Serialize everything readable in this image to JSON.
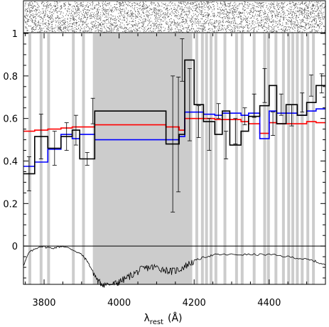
{
  "chart_data": {
    "type": "line",
    "xlabel": "λ",
    "xlabel_sub": "rest",
    "xlabel_unit": "(Å)",
    "xlim": [
      3745,
      4550
    ],
    "ylim": [
      -0.18,
      1.0
    ],
    "x_ticks": [
      3800,
      4000,
      4200,
      4400
    ],
    "x_tick_labels": [
      "3800",
      "4000",
      "4200",
      "4400"
    ],
    "y_ticks": [
      0,
      0.2,
      0.4,
      0.6,
      0.8,
      1
    ],
    "y_tick_labels": [
      "0",
      "0.2",
      "0.4",
      "0.6",
      "0.8",
      "1"
    ],
    "grid": false,
    "masked_band": [
      3930,
      4195
    ],
    "masked_lines": [
      3762,
      3792,
      3812,
      3878,
      3905,
      4145,
      4178,
      4207,
      4222,
      4233,
      4245,
      4258,
      4282,
      4313,
      4328,
      4360,
      4388,
      4398,
      4418,
      4438,
      4452,
      4463,
      4475,
      4488,
      4503,
      4518
    ],
    "colors": {
      "observed": "#000000",
      "model_blue": "#0000ff",
      "model_red": "#ff0000",
      "mask": "#cccccc",
      "zero_line": "#000000"
    },
    "series": [
      {
        "key": "observed",
        "style": "step",
        "x": [
          3745,
          3775,
          3810,
          3845,
          3875,
          3895,
          3935,
          4125,
          4160,
          4175,
          4200,
          4225,
          4255,
          4275,
          4295,
          4325,
          4345,
          4375,
          4400,
          4420,
          4445,
          4475,
          4500,
          4525,
          4550
        ],
        "y": [
          0.34,
          0.515,
          0.46,
          0.515,
          0.545,
          0.41,
          0.635,
          0.48,
          0.525,
          0.875,
          0.665,
          0.585,
          0.525,
          0.635,
          0.475,
          0.54,
          0.61,
          0.66,
          0.755,
          0.575,
          0.665,
          0.615,
          0.675,
          0.755,
          0.765
        ]
      },
      {
        "key": "model_blue",
        "style": "step",
        "x": [
          3745,
          3775,
          3810,
          3845,
          3875,
          3895,
          3935,
          4125,
          4160,
          4175,
          4200,
          4225,
          4255,
          4275,
          4295,
          4325,
          4345,
          4375,
          4400,
          4420,
          4445,
          4475,
          4500,
          4525,
          4550
        ],
        "y": [
          0.375,
          0.395,
          0.455,
          0.525,
          0.505,
          0.525,
          0.5,
          0.5,
          0.515,
          0.63,
          0.63,
          0.62,
          0.615,
          0.625,
          0.625,
          0.615,
          0.625,
          0.505,
          0.635,
          0.625,
          0.625,
          0.615,
          0.635,
          0.645,
          0.65
        ]
      },
      {
        "key": "model_red",
        "style": "step",
        "x": [
          3745,
          3775,
          3810,
          3845,
          3875,
          3895,
          3935,
          4125,
          4160,
          4175,
          4200,
          4225,
          4255,
          4275,
          4295,
          4325,
          4345,
          4375,
          4400,
          4420,
          4445,
          4475,
          4500,
          4525,
          4550
        ],
        "y": [
          0.54,
          0.545,
          0.55,
          0.555,
          0.56,
          0.56,
          0.57,
          0.56,
          0.545,
          0.6,
          0.6,
          0.6,
          0.595,
          0.595,
          0.595,
          0.585,
          0.575,
          0.53,
          0.58,
          0.575,
          0.575,
          0.575,
          0.585,
          0.58,
          0.58
        ]
      }
    ],
    "error_bars": [
      {
        "x": 3760,
        "y": 0.34,
        "err": 0.08
      },
      {
        "x": 3792,
        "y": 0.515,
        "err": 0.105
      },
      {
        "x": 3828,
        "y": 0.46,
        "err": 0.08
      },
      {
        "x": 3860,
        "y": 0.515,
        "err": 0.065
      },
      {
        "x": 3885,
        "y": 0.545,
        "err": 0.07
      },
      {
        "x": 3915,
        "y": 0.41,
        "err": 0.03
      },
      {
        "x": 3930,
        "y": 0.635,
        "err": 0.06
      },
      {
        "x": 4143,
        "y": 0.48,
        "err": 0.32
      },
      {
        "x": 4158,
        "y": 0.525,
        "err": 0.27
      },
      {
        "x": 4168,
        "y": 0.875,
        "err": 0.1
      },
      {
        "x": 4188,
        "y": 0.665,
        "err": 0.17
      },
      {
        "x": 4212,
        "y": 0.585,
        "err": 0.075
      },
      {
        "x": 4240,
        "y": 0.525,
        "err": 0.075
      },
      {
        "x": 4265,
        "y": 0.635,
        "err": 0.035
      },
      {
        "x": 4285,
        "y": 0.475,
        "err": 0.065
      },
      {
        "x": 4310,
        "y": 0.54,
        "err": 0.06
      },
      {
        "x": 4335,
        "y": 0.61,
        "err": 0.04
      },
      {
        "x": 4360,
        "y": 0.66,
        "err": 0.055
      },
      {
        "x": 4388,
        "y": 0.755,
        "err": 0.08
      },
      {
        "x": 4410,
        "y": 0.575,
        "err": 0.055
      },
      {
        "x": 4432,
        "y": 0.665,
        "err": 0.05
      },
      {
        "x": 4460,
        "y": 0.615,
        "err": 0.05
      },
      {
        "x": 4488,
        "y": 0.675,
        "err": 0.045
      },
      {
        "x": 4512,
        "y": 0.755,
        "err": 0.05
      },
      {
        "x": 4540,
        "y": 0.765,
        "err": 0.045
      }
    ],
    "bottom_spectrum": {
      "type": "line",
      "x": [
        3745,
        3760,
        3790,
        3820,
        3850,
        3880,
        3900,
        3915,
        3930,
        3945,
        3960,
        3985,
        4000,
        4020,
        4040,
        4060,
        4080,
        4100,
        4120,
        4140,
        4160,
        4180,
        4200,
        4230,
        4260,
        4300,
        4350,
        4400,
        4450,
        4490,
        4520,
        4550
      ],
      "y": [
        -0.09,
        -0.03,
        0.0,
        -0.01,
        0.0,
        -0.02,
        -0.04,
        -0.07,
        -0.12,
        -0.17,
        -0.18,
        -0.18,
        -0.17,
        -0.15,
        -0.13,
        -0.11,
        -0.1,
        -0.1,
        -0.11,
        -0.12,
        -0.11,
        -0.09,
        -0.07,
        -0.05,
        -0.04,
        -0.04,
        -0.04,
        -0.04,
        -0.05,
        -0.06,
        -0.07,
        -0.09
      ]
    },
    "top_panel": "noise"
  }
}
